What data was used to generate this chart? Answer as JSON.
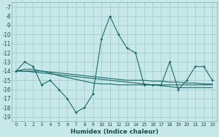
{
  "xlabel": "Humidex (Indice chaleur)",
  "bg_color": "#c6e8e8",
  "grid_color": "#aacece",
  "line_color": "#1a6b6b",
  "x": [
    0,
    1,
    2,
    3,
    4,
    5,
    6,
    7,
    8,
    9,
    10,
    11,
    12,
    13,
    14,
    15,
    16,
    17,
    18,
    19,
    20,
    21,
    22,
    23
  ],
  "y_main": [
    -14,
    -13,
    -13.5,
    -15.5,
    -15,
    -16,
    -17,
    -18.5,
    -18,
    -16.5,
    -10.5,
    -8,
    -10,
    -11.5,
    -12,
    -15.5,
    -15.5,
    -15.5,
    -13,
    -16,
    -15,
    -13.5,
    -13.5,
    -15
  ],
  "y_line1": [
    -14,
    -13.8,
    -13.8,
    -14.0,
    -14.2,
    -14.5,
    -14.7,
    -14.9,
    -15.1,
    -15.3,
    -15.4,
    -15.4,
    -15.5,
    -15.5,
    -15.5,
    -15.5,
    -15.5,
    -15.5,
    -15.5,
    -15.5,
    -15.5,
    -15.5,
    -15.5,
    -15.5
  ],
  "y_line2": [
    -14,
    -14.0,
    -14.0,
    -14.0,
    -14.1,
    -14.2,
    -14.3,
    -14.4,
    -14.5,
    -14.6,
    -14.7,
    -14.8,
    -14.9,
    -15.0,
    -15.0,
    -15.0,
    -15.1,
    -15.1,
    -15.2,
    -15.2,
    -15.3,
    -15.3,
    -15.4,
    -15.4
  ],
  "y_line3": [
    -14,
    -14.0,
    -14.1,
    -14.2,
    -14.3,
    -14.4,
    -14.5,
    -14.6,
    -14.7,
    -14.8,
    -14.9,
    -15.0,
    -15.1,
    -15.2,
    -15.3,
    -15.4,
    -15.5,
    -15.6,
    -15.7,
    -15.8,
    -15.8,
    -15.8,
    -15.8,
    -15.8
  ],
  "ylim": [
    -19.5,
    -6.5
  ],
  "xlim": [
    -0.5,
    23.5
  ],
  "yticks": [
    -19,
    -18,
    -17,
    -16,
    -15,
    -14,
    -13,
    -12,
    -11,
    -10,
    -9,
    -8,
    -7
  ],
  "xticks": [
    0,
    1,
    2,
    3,
    4,
    5,
    6,
    7,
    8,
    9,
    10,
    11,
    12,
    13,
    14,
    15,
    16,
    17,
    18,
    19,
    20,
    21,
    22,
    23
  ]
}
